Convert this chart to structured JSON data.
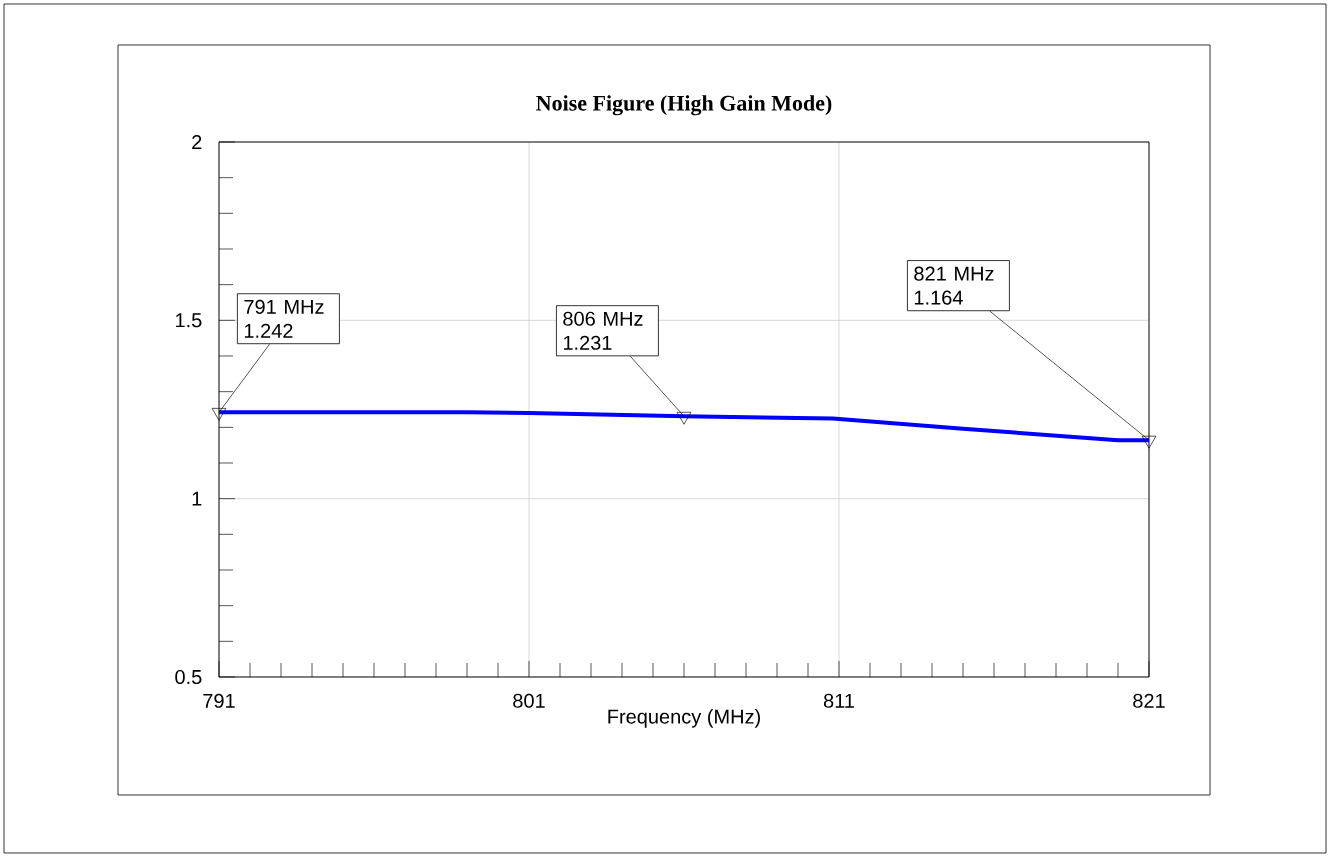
{
  "chart_data": {
    "type": "line",
    "title": "Noise Figure (High Gain Mode)",
    "xlabel": "Frequency (MHz)",
    "x": [
      791,
      793,
      796,
      799,
      801,
      806,
      810.8,
      815,
      820,
      821
    ],
    "values": [
      1.242,
      1.242,
      1.242,
      1.242,
      1.24,
      1.231,
      1.225,
      1.196,
      1.164,
      1.164
    ],
    "color": "#0000ff",
    "marker": "none",
    "line_style": "solid",
    "xlim": [
      791,
      821
    ],
    "xticks": [
      791,
      801,
      811,
      821
    ],
    "ylim": [
      0.5,
      2
    ],
    "yticks": [
      0.5,
      1,
      1.5,
      2
    ],
    "grid": true,
    "annotations": [
      {
        "text": "791 MHz 1.242",
        "x": 791,
        "y": 1.242
      },
      {
        "text": "806 MHz 1.231",
        "x": 806,
        "y": 1.231
      },
      {
        "text": "821 MHz 1.164",
        "x": 821,
        "y": 1.164
      }
    ]
  }
}
